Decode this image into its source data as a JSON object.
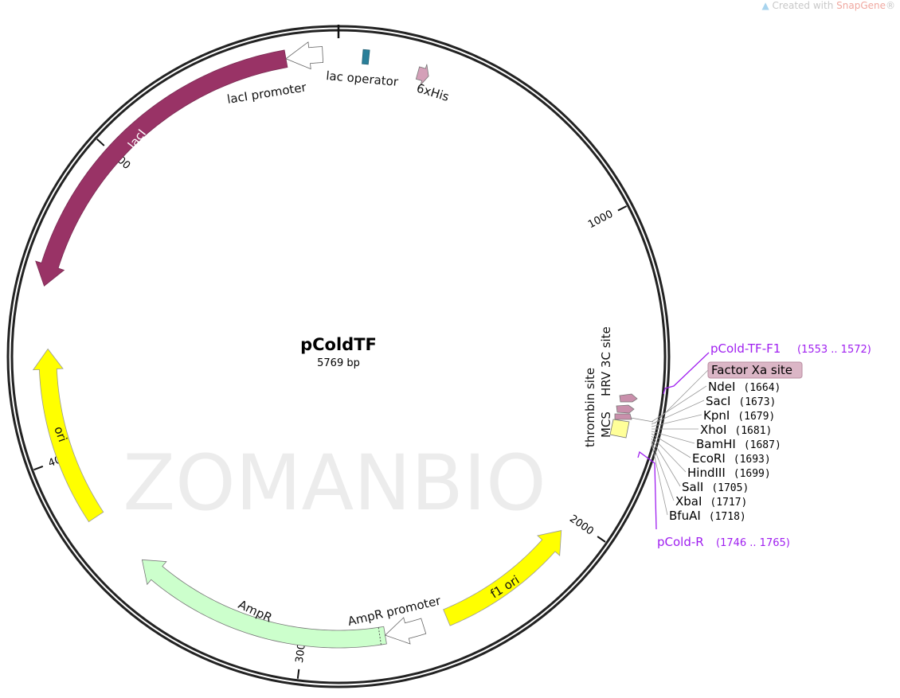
{
  "watermark": {
    "prefix": "Created with ",
    "brand": "SnapGene",
    "suffix": "®"
  },
  "background_watermark": "ZOMANBIO",
  "plasmid": {
    "name": "pColdTF",
    "size": "5769 bp",
    "length_bp": 5769
  },
  "ticks": [
    {
      "bp": 1000,
      "label": "1000"
    },
    {
      "bp": 2000,
      "label": "2000"
    },
    {
      "bp": 3000,
      "label": "3000"
    },
    {
      "bp": 4000,
      "label": "4000"
    },
    {
      "bp": 5000,
      "label": "5000"
    }
  ],
  "features": {
    "lacI": {
      "label": "lacI",
      "color": "#993366"
    },
    "lacI_promoter": {
      "label": "lacI promoter",
      "color": "#ffffff"
    },
    "lac_operator": {
      "label": "lac operator",
      "color": "#2a7f99"
    },
    "his": {
      "label": "6xHis",
      "color": "#d4a0b8"
    },
    "thrombin": {
      "label": "thrombin site",
      "color": "#c98fab"
    },
    "hrv": {
      "label": "HRV 3C site",
      "color": "#c98fab"
    },
    "mcs": {
      "label": "MCS",
      "color": "#ffff99"
    },
    "f1ori": {
      "label": "f1 ori",
      "color": "#ffff00"
    },
    "ampr_promoter": {
      "label": "AmpR promoter",
      "color": "#ffffff"
    },
    "ampr": {
      "label": "AmpR",
      "color": "#ccffcc"
    },
    "ori": {
      "label": "ori",
      "color": "#ffff00"
    }
  },
  "factor_xa": {
    "label": "Factor Xa site",
    "color": "#dbb6c6"
  },
  "primers": [
    {
      "name": "pCold-TF-F1",
      "range": "(1553 .. 1572)"
    },
    {
      "name": "pCold-R",
      "range": "(1746 .. 1765)"
    }
  ],
  "primer_color": "#a020f0",
  "sites": [
    {
      "name": "NdeI",
      "pos": "(1664)"
    },
    {
      "name": "SacI",
      "pos": "(1673)"
    },
    {
      "name": "KpnI",
      "pos": "(1679)"
    },
    {
      "name": "XhoI",
      "pos": "(1681)"
    },
    {
      "name": "BamHI",
      "pos": "(1687)"
    },
    {
      "name": "EcoRI",
      "pos": "(1693)"
    },
    {
      "name": "HindIII",
      "pos": "(1699)"
    },
    {
      "name": "SalI",
      "pos": "(1705)"
    },
    {
      "name": "XbaI",
      "pos": "(1717)"
    },
    {
      "name": "BfuAI",
      "pos": "(1718)"
    }
  ]
}
